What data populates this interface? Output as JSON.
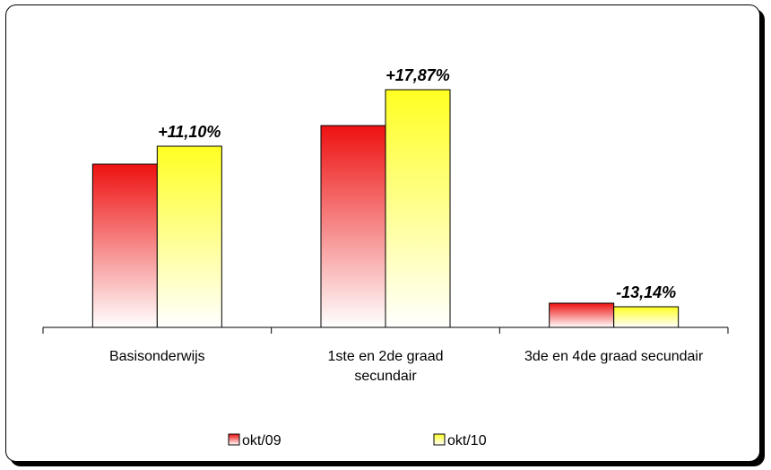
{
  "chart_data": {
    "type": "bar",
    "categories": [
      [
        "Basisonderwijs"
      ],
      [
        "1ste en 2de graad",
        "secundair"
      ],
      [
        "3de en 4de graad secundair"
      ]
    ],
    "series": [
      {
        "name": "okt/09",
        "values": [
          182,
          225,
          27
        ],
        "color_top": "#ee1111",
        "color_bottom": "#ffffff"
      },
      {
        "name": "okt/10",
        "values": [
          202,
          265,
          23
        ],
        "color_top": "#ffff22",
        "color_bottom": "#ffffff"
      }
    ],
    "data_labels": [
      "+11,10%",
      "+17,87%",
      "-13,14%"
    ],
    "ylim": [
      0,
      280
    ],
    "grid": false,
    "legend_position": "bottom"
  }
}
